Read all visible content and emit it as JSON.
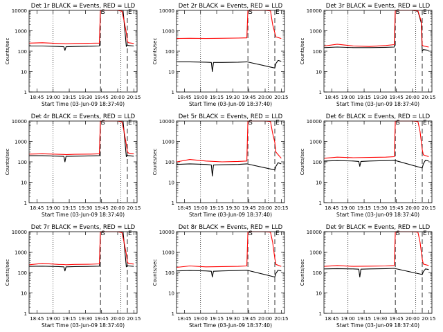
{
  "chart_data": [
    {
      "type": "line",
      "title": "Det 1r BLACK = Events, RED = LLD",
      "xlabel": "Start Time (03-Jun-09 18:37:40)",
      "ylabel": "Counts/sec",
      "yscale": "log",
      "ylim": [
        1,
        10000
      ],
      "yticks": [
        "1",
        "10",
        "100",
        "1000",
        "10000"
      ],
      "xlim": [
        "18:37:40",
        "20:18:00"
      ],
      "xticks": [
        "18:45",
        "19:00",
        "19:15",
        "19:30",
        "19:45",
        "20:00",
        "20:15"
      ],
      "markers": {
        "S": "19:44",
        "E": "20:09"
      },
      "series": [
        {
          "name": "Events",
          "color": "#000000",
          "x": [
            "18:38",
            "18:50",
            "19:05",
            "19:10",
            "19:11",
            "19:12",
            "19:20",
            "19:35",
            "19:43",
            "19:44",
            "19:46",
            "20:00",
            "20:05",
            "20:08",
            "20:09",
            "20:10",
            "20:15"
          ],
          "y": [
            180,
            180,
            170,
            165,
            110,
            165,
            170,
            175,
            180,
            10000,
            10000,
            10000,
            10000,
            170,
            200,
            190,
            180
          ]
        },
        {
          "name": "LLD",
          "color": "#ff0000",
          "x": [
            "18:38",
            "18:50",
            "19:05",
            "19:10",
            "19:12",
            "19:20",
            "19:35",
            "19:43",
            "19:44",
            "19:46",
            "20:00",
            "20:04",
            "20:06",
            "20:08",
            "20:09",
            "20:10",
            "20:15"
          ],
          "y": [
            250,
            260,
            240,
            235,
            230,
            240,
            245,
            250,
            10000,
            10000,
            10000,
            9000,
            3000,
            800,
            300,
            260,
            240
          ]
        }
      ]
    },
    {
      "type": "line",
      "title": "Det 2r BLACK = Events, RED = LLD",
      "xlabel": "Start Time (03-Jun-09 18:37:40)",
      "ylabel": "Counts/sec",
      "yscale": "log",
      "ylim": [
        1,
        10000
      ],
      "yticks": [
        "1",
        "10",
        "100",
        "1000",
        "10000"
      ],
      "xlim": [
        "18:37:40",
        "20:18:00"
      ],
      "xticks": [
        "18:45",
        "19:00",
        "19:15",
        "19:30",
        "19:45",
        "20:00",
        "20:15"
      ],
      "markers": {
        "S": "19:44",
        "E": "20:09"
      },
      "series": [
        {
          "name": "Events",
          "color": "#000000",
          "x": [
            "18:38",
            "18:50",
            "19:05",
            "19:10",
            "19:11",
            "19:12",
            "19:20",
            "19:35",
            "19:43",
            "20:09",
            "20:10",
            "20:12",
            "20:15"
          ],
          "y": [
            30,
            30,
            29,
            28,
            10,
            28,
            28,
            29,
            30,
            15,
            25,
            35,
            32
          ]
        },
        {
          "name": "LLD",
          "color": "#ff0000",
          "x": [
            "18:38",
            "18:50",
            "19:05",
            "19:20",
            "19:35",
            "19:43",
            "19:44",
            "19:46",
            "20:00",
            "20:05",
            "20:07",
            "20:09",
            "20:10",
            "20:15"
          ],
          "y": [
            420,
            430,
            420,
            430,
            440,
            450,
            10000,
            10000,
            10000,
            9500,
            2000,
            800,
            500,
            420
          ]
        }
      ]
    },
    {
      "type": "line",
      "title": "Det 3r BLACK = Events, RED = LLD",
      "xlabel": "Start Time (03-Jun-09 18:37:40)",
      "ylabel": "Counts/sec",
      "yscale": "log",
      "ylim": [
        1,
        10000
      ],
      "yticks": [
        "1",
        "10",
        "100",
        "1000",
        "10000"
      ],
      "xlim": [
        "18:37:40",
        "20:18:00"
      ],
      "xticks": [
        "18:45",
        "19:00",
        "19:15",
        "19:30",
        "19:45",
        "20:00",
        "20:15"
      ],
      "markers": {
        "S": "19:44",
        "E": "20:09"
      },
      "series": [
        {
          "name": "Events",
          "color": "#000000",
          "x": [
            "18:38",
            "18:50",
            "19:05",
            "19:20",
            "19:35",
            "19:43",
            "19:44",
            "19:46",
            "20:00",
            "20:05",
            "20:08",
            "20:09",
            "20:10",
            "20:15"
          ],
          "y": [
            150,
            160,
            150,
            150,
            155,
            160,
            10000,
            10000,
            10000,
            9000,
            2500,
            100,
            120,
            110
          ]
        },
        {
          "name": "LLD",
          "color": "#ff0000",
          "x": [
            "18:38",
            "18:50",
            "19:05",
            "19:20",
            "19:35",
            "19:43",
            "19:44",
            "19:46",
            "20:00",
            "20:05",
            "20:08",
            "20:09",
            "20:10",
            "20:15"
          ],
          "y": [
            180,
            220,
            180,
            170,
            190,
            210,
            10000,
            10000,
            10000,
            9500,
            3000,
            200,
            180,
            160
          ]
        }
      ]
    },
    {
      "type": "line",
      "title": "Det 4r BLACK = Events, RED = LLD",
      "xlabel": "Start Time (03-Jun-09 18:37:40)",
      "ylabel": "Counts/sec",
      "yscale": "log",
      "ylim": [
        1,
        10000
      ],
      "yticks": [
        "1",
        "10",
        "100",
        "1000",
        "10000"
      ],
      "xlim": [
        "18:37:40",
        "20:18:00"
      ],
      "xticks": [
        "18:45",
        "19:00",
        "19:15",
        "19:30",
        "19:45",
        "20:00",
        "20:15"
      ],
      "markers": {
        "S": "19:44",
        "E": "20:09"
      },
      "series": [
        {
          "name": "Events",
          "color": "#000000",
          "x": [
            "18:38",
            "18:50",
            "19:05",
            "19:10",
            "19:11",
            "19:12",
            "19:20",
            "19:35",
            "19:43",
            "19:44",
            "19:46",
            "20:00",
            "20:05",
            "20:08",
            "20:09",
            "20:10",
            "20:15"
          ],
          "y": [
            200,
            200,
            190,
            185,
            100,
            185,
            190,
            195,
            200,
            10000,
            10000,
            10000,
            10000,
            180,
            210,
            200,
            190
          ]
        },
        {
          "name": "LLD",
          "color": "#ff0000",
          "x": [
            "18:38",
            "18:50",
            "19:05",
            "19:10",
            "19:12",
            "19:20",
            "19:35",
            "19:43",
            "19:44",
            "19:46",
            "20:00",
            "20:04",
            "20:06",
            "20:08",
            "20:09",
            "20:10",
            "20:15"
          ],
          "y": [
            240,
            250,
            235,
            230,
            225,
            235,
            240,
            250,
            10000,
            10000,
            10000,
            9000,
            3000,
            700,
            320,
            270,
            250
          ]
        }
      ]
    },
    {
      "type": "line",
      "title": "Det 5r BLACK = Events, RED = LLD",
      "xlabel": "Start Time (03-Jun-09 18:37:40)",
      "ylabel": "Counts/sec",
      "yscale": "log",
      "ylim": [
        1,
        10000
      ],
      "yticks": [
        "1",
        "10",
        "100",
        "1000",
        "10000"
      ],
      "xlim": [
        "18:37:40",
        "20:18:00"
      ],
      "xticks": [
        "18:45",
        "19:00",
        "19:15",
        "19:30",
        "19:45",
        "20:00",
        "20:15"
      ],
      "markers": {
        "S": "19:44",
        "E": "20:09"
      },
      "series": [
        {
          "name": "Events",
          "color": "#000000",
          "x": [
            "18:38",
            "18:50",
            "19:05",
            "19:10",
            "19:11",
            "19:12",
            "19:20",
            "19:35",
            "19:43",
            "20:09",
            "20:10",
            "20:12",
            "20:15"
          ],
          "y": [
            75,
            80,
            75,
            70,
            20,
            70,
            72,
            75,
            80,
            40,
            60,
            90,
            80
          ]
        },
        {
          "name": "LLD",
          "color": "#ff0000",
          "x": [
            "18:38",
            "18:50",
            "19:05",
            "19:20",
            "19:35",
            "19:43",
            "19:44",
            "19:46",
            "20:00",
            "20:05",
            "20:07",
            "20:09",
            "20:10",
            "20:15"
          ],
          "y": [
            100,
            130,
            110,
            100,
            105,
            110,
            10000,
            10000,
            10000,
            9500,
            2500,
            900,
            300,
            150
          ]
        }
      ]
    },
    {
      "type": "line",
      "title": "Det 6r BLACK = Events, RED = LLD",
      "xlabel": "Start Time (03-Jun-09 18:37:40)",
      "ylabel": "Counts/sec",
      "yscale": "log",
      "ylim": [
        1,
        10000
      ],
      "yticks": [
        "1",
        "10",
        "100",
        "1000",
        "10000"
      ],
      "xlim": [
        "18:37:40",
        "20:18:00"
      ],
      "xticks": [
        "18:45",
        "19:00",
        "19:15",
        "19:30",
        "19:45",
        "20:00",
        "20:15"
      ],
      "markers": {
        "S": "19:44",
        "E": "20:09"
      },
      "series": [
        {
          "name": "Events",
          "color": "#000000",
          "x": [
            "18:38",
            "18:50",
            "19:05",
            "19:10",
            "19:11",
            "19:12",
            "19:20",
            "19:35",
            "19:43",
            "20:09",
            "20:10",
            "20:12",
            "20:15"
          ],
          "y": [
            110,
            115,
            110,
            105,
            60,
            105,
            110,
            115,
            120,
            50,
            80,
            120,
            110
          ]
        },
        {
          "name": "LLD",
          "color": "#ff0000",
          "x": [
            "18:38",
            "18:50",
            "19:05",
            "19:20",
            "19:35",
            "19:43",
            "19:44",
            "19:46",
            "20:00",
            "20:05",
            "20:07",
            "20:09",
            "20:10",
            "20:15"
          ],
          "y": [
            150,
            170,
            160,
            165,
            170,
            180,
            10000,
            10000,
            10000,
            9500,
            3000,
            400,
            220,
            180
          ]
        }
      ]
    },
    {
      "type": "line",
      "title": "Det 7r BLACK = Events, RED = LLD",
      "xlabel": "Start Time (03-Jun-09 18:37:40)",
      "ylabel": "Counts/sec",
      "yscale": "log",
      "ylim": [
        1,
        10000
      ],
      "yticks": [
        "1",
        "10",
        "100",
        "1000",
        "10000"
      ],
      "xlim": [
        "18:37:40",
        "20:18:00"
      ],
      "xticks": [
        "18:45",
        "19:00",
        "19:15",
        "19:30",
        "19:45",
        "20:00",
        "20:15"
      ],
      "markers": {
        "S": "19:44",
        "E": "20:09"
      },
      "series": [
        {
          "name": "Events",
          "color": "#000000",
          "x": [
            "18:38",
            "18:50",
            "19:05",
            "19:10",
            "19:11",
            "19:12",
            "19:20",
            "19:35",
            "19:43",
            "19:44",
            "19:46",
            "20:00",
            "20:05",
            "20:08",
            "20:09",
            "20:10",
            "20:15"
          ],
          "y": [
            200,
            205,
            195,
            190,
            120,
            190,
            195,
            200,
            205,
            10000,
            10000,
            10000,
            10000,
            190,
            220,
            210,
            200
          ]
        },
        {
          "name": "LLD",
          "color": "#ff0000",
          "x": [
            "18:38",
            "18:50",
            "19:05",
            "19:10",
            "19:12",
            "19:20",
            "19:35",
            "19:43",
            "19:44",
            "19:46",
            "20:00",
            "20:04",
            "20:06",
            "20:08",
            "20:09",
            "20:10",
            "20:15"
          ],
          "y": [
            240,
            280,
            250,
            245,
            240,
            250,
            255,
            265,
            10000,
            10000,
            10000,
            9000,
            3000,
            800,
            330,
            280,
            260
          ]
        }
      ]
    },
    {
      "type": "line",
      "title": "Det 8r BLACK = Events, RED = LLD",
      "xlabel": "Start Time (03-Jun-09 18:37:40)",
      "ylabel": "Counts/sec",
      "yscale": "log",
      "ylim": [
        1,
        10000
      ],
      "yticks": [
        "1",
        "10",
        "100",
        "1000",
        "10000"
      ],
      "xlim": [
        "18:37:40",
        "20:18:00"
      ],
      "xticks": [
        "18:45",
        "19:00",
        "19:15",
        "19:30",
        "19:45",
        "20:00",
        "20:15"
      ],
      "markers": {
        "S": "19:44",
        "E": "20:09"
      },
      "series": [
        {
          "name": "Events",
          "color": "#000000",
          "x": [
            "18:38",
            "18:50",
            "19:05",
            "19:10",
            "19:11",
            "19:12",
            "19:20",
            "19:35",
            "19:43",
            "20:09",
            "20:10",
            "20:12",
            "20:15"
          ],
          "y": [
            120,
            125,
            120,
            115,
            60,
            115,
            120,
            125,
            130,
            60,
            90,
            130,
            120
          ]
        },
        {
          "name": "LLD",
          "color": "#ff0000",
          "x": [
            "18:38",
            "18:50",
            "19:05",
            "19:20",
            "19:35",
            "19:43",
            "19:44",
            "19:46",
            "20:00",
            "20:05",
            "20:07",
            "20:09",
            "20:10",
            "20:15"
          ],
          "y": [
            180,
            210,
            190,
            195,
            200,
            210,
            10000,
            10000,
            10000,
            9500,
            3000,
            500,
            250,
            200
          ]
        }
      ]
    },
    {
      "type": "line",
      "title": "Det 9r BLACK = Events, RED = LLD",
      "xlabel": "Start Time (03-Jun-09 18:37:40)",
      "ylabel": "Counts/sec",
      "yscale": "log",
      "ylim": [
        1,
        10000
      ],
      "yticks": [
        "1",
        "10",
        "100",
        "1000",
        "10000"
      ],
      "xlim": [
        "18:37:40",
        "20:18:00"
      ],
      "xticks": [
        "18:45",
        "19:00",
        "19:15",
        "19:30",
        "19:45",
        "20:00",
        "20:15"
      ],
      "markers": {
        "S": "19:44",
        "E": "20:09"
      },
      "series": [
        {
          "name": "Events",
          "color": "#000000",
          "x": [
            "18:38",
            "18:50",
            "19:05",
            "19:10",
            "19:11",
            "19:12",
            "19:20",
            "19:35",
            "19:43",
            "20:09",
            "20:10",
            "20:12",
            "20:15"
          ],
          "y": [
            150,
            155,
            150,
            145,
            60,
            145,
            150,
            155,
            160,
            80,
            110,
            150,
            140
          ]
        },
        {
          "name": "LLD",
          "color": "#ff0000",
          "x": [
            "18:38",
            "18:50",
            "19:05",
            "19:20",
            "19:35",
            "19:43",
            "19:44",
            "19:46",
            "20:00",
            "20:05",
            "20:07",
            "20:09",
            "20:10",
            "20:15"
          ],
          "y": [
            200,
            220,
            200,
            205,
            210,
            220,
            10000,
            10000,
            10000,
            9500,
            3000,
            450,
            260,
            220
          ]
        }
      ]
    }
  ]
}
